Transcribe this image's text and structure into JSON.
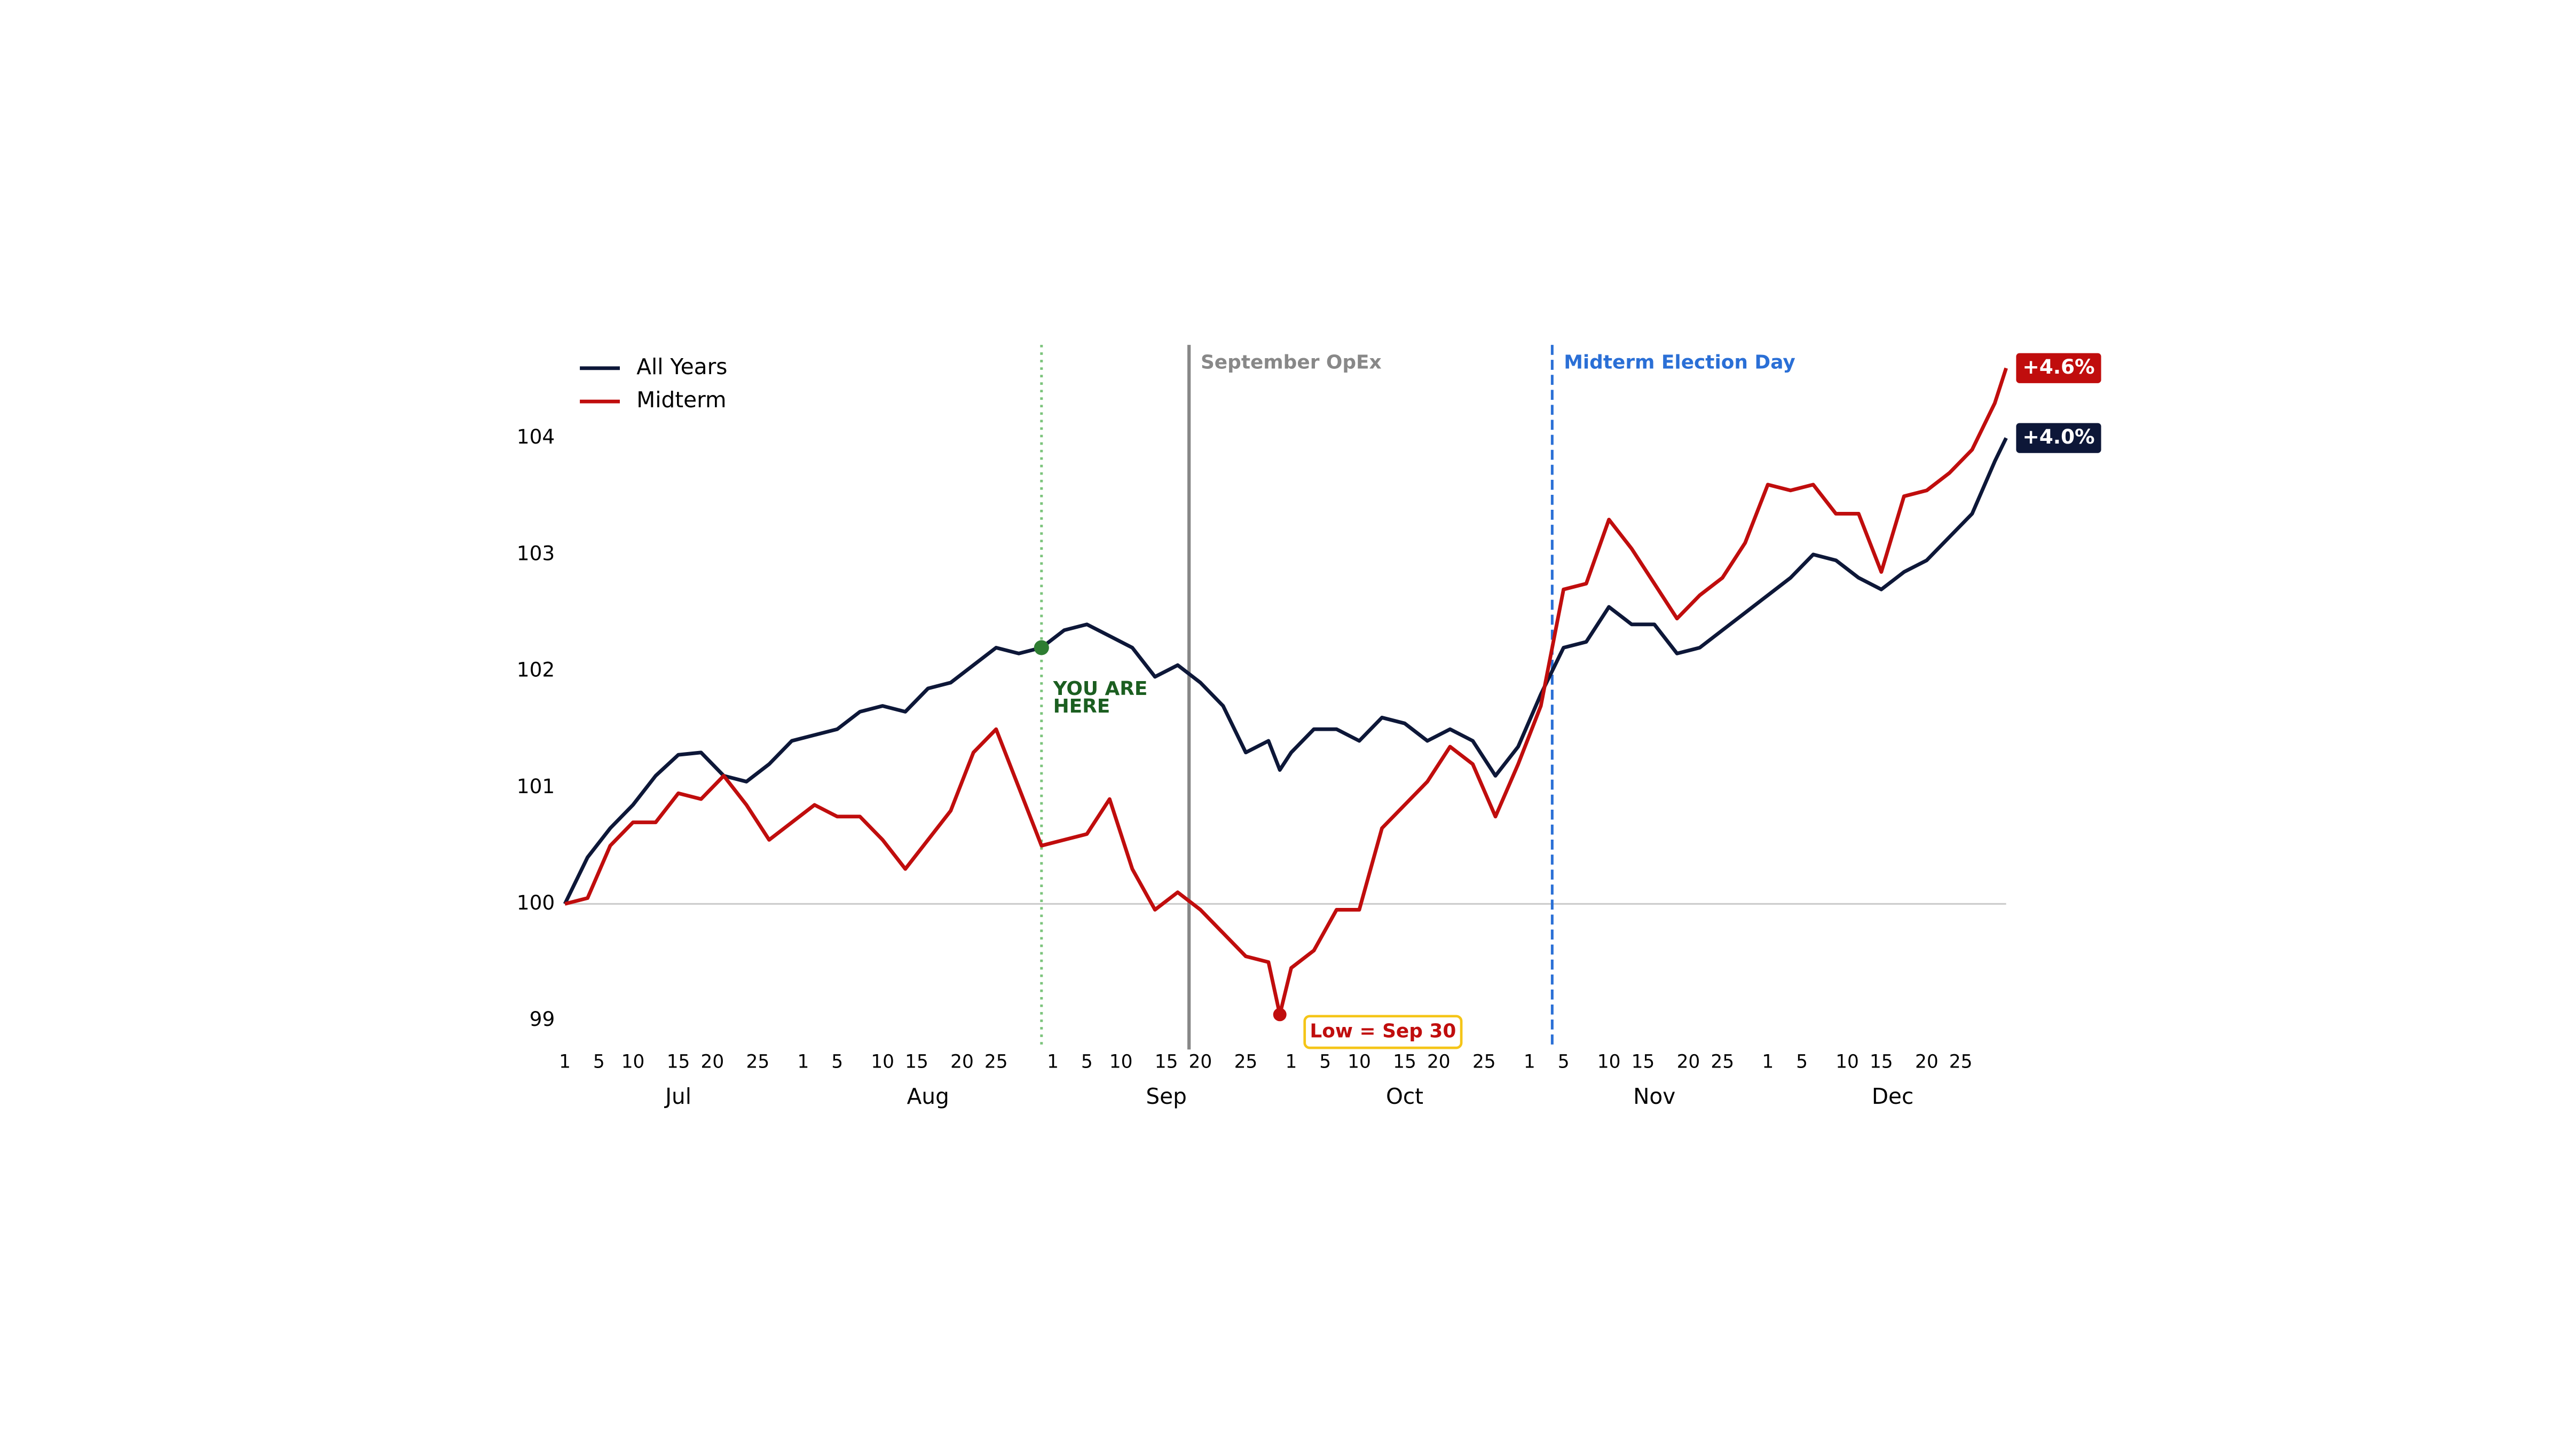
{
  "chart_data": {
    "type": "line",
    "legend": "upper left",
    "xlim": [
      0,
      127
    ],
    "ylim": [
      98.75,
      104.8
    ],
    "yticks": [
      99,
      100,
      101,
      102,
      103,
      104
    ],
    "xticks": [
      {
        "value": 0,
        "label": "1"
      },
      {
        "value": 3,
        "label": "5"
      },
      {
        "value": 6,
        "label": "10"
      },
      {
        "value": 10,
        "label": "15"
      },
      {
        "value": 13,
        "label": "20"
      },
      {
        "value": 17,
        "label": "25"
      },
      {
        "value": 21,
        "label": "1"
      },
      {
        "value": 24,
        "label": "5"
      },
      {
        "value": 28,
        "label": "10"
      },
      {
        "value": 31,
        "label": "15"
      },
      {
        "value": 35,
        "label": "20"
      },
      {
        "value": 38,
        "label": "25"
      },
      {
        "value": 43,
        "label": "1"
      },
      {
        "value": 46,
        "label": "5"
      },
      {
        "value": 49,
        "label": "10"
      },
      {
        "value": 53,
        "label": "15"
      },
      {
        "value": 56,
        "label": "20"
      },
      {
        "value": 60,
        "label": "25"
      },
      {
        "value": 64,
        "label": "1"
      },
      {
        "value": 67,
        "label": "5"
      },
      {
        "value": 70,
        "label": "10"
      },
      {
        "value": 74,
        "label": "15"
      },
      {
        "value": 77,
        "label": "20"
      },
      {
        "value": 81,
        "label": "25"
      },
      {
        "value": 85,
        "label": "1"
      },
      {
        "value": 88,
        "label": "5"
      },
      {
        "value": 92,
        "label": "10"
      },
      {
        "value": 95,
        "label": "15"
      },
      {
        "value": 99,
        "label": "20"
      },
      {
        "value": 102,
        "label": "25"
      },
      {
        "value": 106,
        "label": "1"
      },
      {
        "value": 109,
        "label": "5"
      },
      {
        "value": 113,
        "label": "10"
      },
      {
        "value": 116,
        "label": "15"
      },
      {
        "value": 120,
        "label": "20"
      },
      {
        "value": 123,
        "label": "25"
      }
    ],
    "months": [
      {
        "value": 10,
        "label": "Jul"
      },
      {
        "value": 32,
        "label": "Aug"
      },
      {
        "value": 53,
        "label": "Sep"
      },
      {
        "value": 74,
        "label": "Oct"
      },
      {
        "value": 96,
        "label": "Nov"
      },
      {
        "value": 117,
        "label": "Dec"
      }
    ],
    "hline": {
      "y": 100,
      "color": "#cccccc"
    },
    "x": [
      0,
      2,
      4,
      6,
      8,
      10,
      12,
      14,
      16,
      18,
      20,
      22,
      24,
      26,
      28,
      30,
      32,
      34,
      36,
      38,
      40,
      42,
      44,
      46,
      48,
      50,
      52,
      54,
      56,
      58,
      60,
      62,
      63,
      64,
      66,
      68,
      70,
      72,
      74,
      76,
      78,
      80,
      82,
      84,
      86,
      88,
      90,
      92,
      94,
      96,
      98,
      100,
      102,
      104,
      106,
      108,
      110,
      112,
      114,
      116,
      118,
      120,
      122,
      124,
      126,
      127
    ],
    "series": [
      {
        "name": "All Years",
        "color": "#0d1738",
        "end_label": "+4.0%",
        "values": [
          100.0,
          100.4,
          100.65,
          100.85,
          101.1,
          101.28,
          101.3,
          101.1,
          101.05,
          101.2,
          101.4,
          101.45,
          101.5,
          101.65,
          101.7,
          101.65,
          101.85,
          101.9,
          102.05,
          102.2,
          102.15,
          102.2,
          102.35,
          102.4,
          102.3,
          102.2,
          101.95,
          102.05,
          101.9,
          101.7,
          101.3,
          101.4,
          101.15,
          101.3,
          101.5,
          101.5,
          101.4,
          101.6,
          101.55,
          101.4,
          101.5,
          101.4,
          101.1,
          101.35,
          101.8,
          102.2,
          102.25,
          102.55,
          102.4,
          102.4,
          102.15,
          102.2,
          102.35,
          102.5,
          102.65,
          102.8,
          103.0,
          102.95,
          102.8,
          102.7,
          102.85,
          102.95,
          103.15,
          103.35,
          103.8,
          104.0
        ]
      },
      {
        "name": "Midterm",
        "color": "#c00d0d",
        "end_label": "+4.6%",
        "values": [
          100.0,
          100.05,
          100.5,
          100.7,
          100.7,
          100.95,
          100.9,
          101.1,
          100.85,
          100.55,
          100.7,
          100.85,
          100.75,
          100.75,
          100.55,
          100.3,
          100.55,
          100.8,
          101.3,
          101.5,
          101.0,
          100.5,
          100.55,
          100.6,
          100.9,
          100.3,
          99.95,
          100.1,
          99.95,
          99.75,
          99.55,
          99.5,
          99.05,
          99.45,
          99.6,
          99.95,
          99.95,
          100.65,
          100.85,
          101.05,
          101.35,
          101.2,
          100.75,
          101.2,
          101.7,
          102.7,
          102.75,
          103.3,
          103.05,
          102.75,
          102.45,
          102.65,
          102.8,
          103.1,
          103.6,
          103.55,
          103.6,
          103.35,
          103.35,
          102.85,
          103.5,
          103.55,
          103.7,
          103.9,
          104.3,
          104.6
        ]
      }
    ],
    "vlines": [
      {
        "x": 42,
        "color": "#7cc47c",
        "style": "dotted"
      },
      {
        "x": 55,
        "label": "September OpEx",
        "color": "#888888",
        "style": "solid"
      },
      {
        "x": 87,
        "label": "Midterm Election Day",
        "color": "#2a6fd6",
        "style": "dashed"
      }
    ],
    "you_are_here": {
      "x": 42,
      "y": 102.2,
      "lines": [
        "YOU ARE",
        "HERE"
      ],
      "color": "#2e7d32",
      "text_color": "#1b5e20"
    },
    "low": {
      "x": 63,
      "y": 99.05,
      "label": "Low = Sep 30",
      "color": "#c00d0d",
      "box_edge": "#f5c518"
    }
  }
}
